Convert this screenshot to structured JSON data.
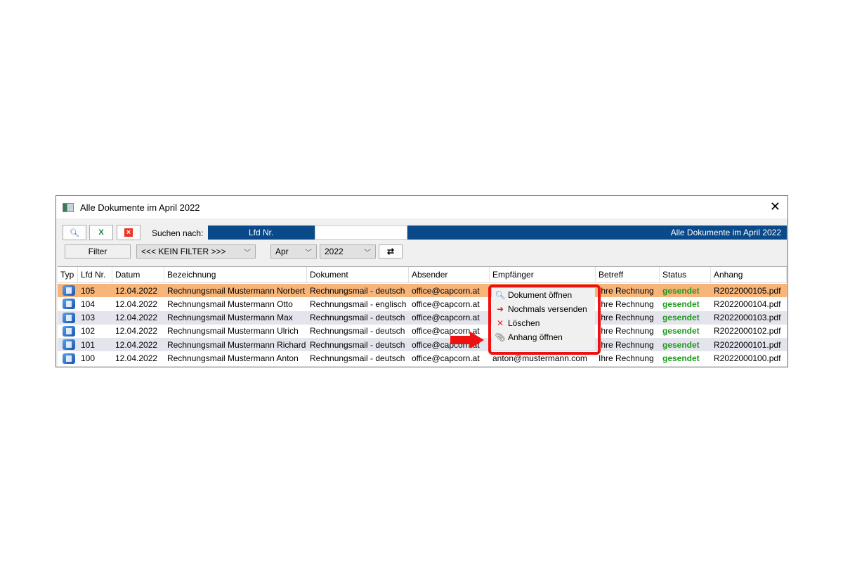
{
  "window": {
    "title": "Alle Dokumente im  April 2022",
    "close_icon": "close-icon"
  },
  "toolbar": {
    "search_label": "Suchen nach:",
    "search_field": "Lfd Nr.",
    "search_value": "",
    "right_label": "Alle Dokumente im  April 2022",
    "filter_label": "Filter",
    "filter_select": "<<< KEIN FILTER >>>",
    "month_select": "Apr",
    "year_select": "2022"
  },
  "columns": [
    "Typ",
    "Lfd Nr.",
    "Datum",
    "Bezeichnung",
    "Dokument",
    "Absender",
    "Empfänger",
    "Betreff",
    "Status",
    "Anhang"
  ],
  "rows": [
    {
      "nr": "105",
      "datum": "12.04.2022",
      "bez": "Rechnungsmail Mustermann Norbert",
      "dok": "Rechnungsmail - deutsch",
      "abs": "office@capcorn.at",
      "emp": "",
      "betreff": "Ihre Rechnung",
      "status": "gesendet",
      "anhang": "R2022000105.pdf"
    },
    {
      "nr": "104",
      "datum": "12.04.2022",
      "bez": "Rechnungsmail Mustermann Otto",
      "dok": "Rechnungsmail - englisch",
      "abs": "office@capcorn.at",
      "emp": "",
      "betreff": "Ihre Rechnung",
      "status": "gesendet",
      "anhang": "R2022000104.pdf"
    },
    {
      "nr": "103",
      "datum": "12.04.2022",
      "bez": "Rechnungsmail Mustermann Max",
      "dok": "Rechnungsmail - deutsch",
      "abs": "office@capcorn.at",
      "emp": "",
      "betreff": "Ihre Rechnung",
      "status": "gesendet",
      "anhang": "R2022000103.pdf"
    },
    {
      "nr": "102",
      "datum": "12.04.2022",
      "bez": "Rechnungsmail Mustermann Ulrich",
      "dok": "Rechnungsmail - deutsch",
      "abs": "office@capcorn.at",
      "emp": "",
      "betreff": "Ihre Rechnung",
      "status": "gesendet",
      "anhang": "R2022000102.pdf"
    },
    {
      "nr": "101",
      "datum": "12.04.2022",
      "bez": "Rechnungsmail Mustermann Richard",
      "dok": "Rechnungsmail - deutsch",
      "abs": "office@capcorn.at",
      "emp": "",
      "betreff": "Ihre Rechnung",
      "status": "gesendet",
      "anhang": "R2022000101.pdf"
    },
    {
      "nr": "100",
      "datum": "12.04.2022",
      "bez": "Rechnungsmail Mustermann Anton",
      "dok": "Rechnungsmail - deutsch",
      "abs": "office@capcorn.at",
      "emp": "anton@mustermann.com",
      "betreff": "Ihre Rechnung",
      "status": "gesendet",
      "anhang": "R2022000100.pdf"
    }
  ],
  "context_menu": [
    {
      "label": "Dokument öffnen",
      "icon": "magnifier-icon"
    },
    {
      "label": "Nochmals versenden",
      "icon": "resend-icon"
    },
    {
      "label": "Löschen",
      "icon": "delete-x-icon"
    },
    {
      "label": "Anhang öffnen",
      "icon": "paperclip-icon"
    }
  ],
  "colors": {
    "selected_row": "#f7b57a",
    "alt_row": "#e4e4ec",
    "status": "#1e9a1e",
    "highlight": "#ee1111",
    "header_bar": "#0a4a8a"
  }
}
